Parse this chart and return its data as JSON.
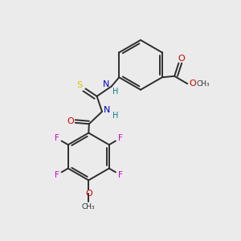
{
  "bg_color": "#ebebeb",
  "bond_color": "#2d2d2d",
  "colors": {
    "N": "#0000cc",
    "O": "#cc0000",
    "S": "#cccc00",
    "F": "#cc00cc",
    "H": "#008080",
    "C": "#2d2d2d"
  }
}
